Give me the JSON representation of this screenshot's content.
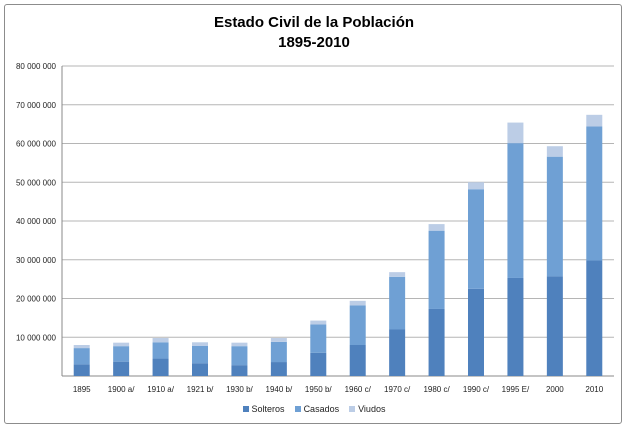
{
  "chart_data": {
    "type": "bar",
    "stacked": true,
    "title": "Estado Civil de la Población",
    "subtitle": "1895-2010",
    "categories": [
      "1895",
      "1900 a/",
      "1910 a/",
      "1921 b/",
      "1930 b/",
      "1940 b/",
      "1950 b/",
      "1960 c/",
      "1970 c/",
      "1980 c/",
      "1990 c/",
      "1995 E/",
      "2000",
      "2010"
    ],
    "series": [
      {
        "name": "Solteros",
        "color": "#4f81bd",
        "values": [
          3000000,
          3700000,
          4500000,
          3300000,
          2800000,
          3600000,
          6000000,
          8000000,
          12000000,
          17300000,
          22500000,
          25300000,
          25700000,
          29800000
        ]
      },
      {
        "name": "Casados",
        "color": "#6fa0d4",
        "values": [
          4200000,
          4000000,
          4200000,
          4500000,
          4900000,
          5200000,
          7300000,
          10200000,
          13600000,
          20200000,
          25700000,
          34800000,
          30900000,
          34600000
        ]
      },
      {
        "name": "Viudos",
        "color": "#bccde6",
        "values": [
          800000,
          900000,
          1100000,
          900000,
          900000,
          1000000,
          1000000,
          1200000,
          1200000,
          1700000,
          1800000,
          5300000,
          2700000,
          3000000
        ]
      }
    ],
    "ylim": [
      0,
      80000000
    ],
    "yticks": [
      0,
      10000000,
      20000000,
      30000000,
      40000000,
      50000000,
      60000000,
      70000000,
      80000000
    ],
    "ytick_labels": [
      "",
      "10 000 000",
      "20 000 000",
      "30 000 000",
      "40 000 000",
      "50 000 000",
      "60 000 000",
      "70 000 000",
      "80 000 000"
    ],
    "grid": true,
    "legend_position": "bottom"
  }
}
